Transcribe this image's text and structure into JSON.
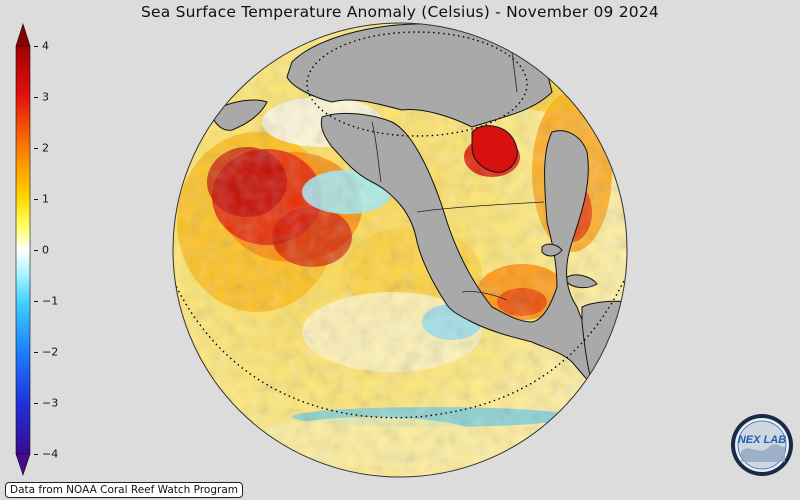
{
  "title": "Sea Surface Temperature Anomaly (Celsius) - November 09 2024",
  "colorbar": {
    "min": -4,
    "max": 4,
    "ticks": [
      "4",
      "3",
      "2",
      "1",
      "0",
      "−1",
      "−2",
      "−3",
      "−4"
    ],
    "colors": [
      "#4a0a8c",
      "#1f3fd4",
      "#1e8cff",
      "#6fe0ff",
      "#ffffff",
      "#ffff3a",
      "#ffb300",
      "#ff4a00",
      "#b40000",
      "#6e0000"
    ]
  },
  "source_text": "Data from NOAA Coral Reef Watch Program",
  "logo_text": "NEX LAB",
  "land_color": "#a9a9a9"
}
